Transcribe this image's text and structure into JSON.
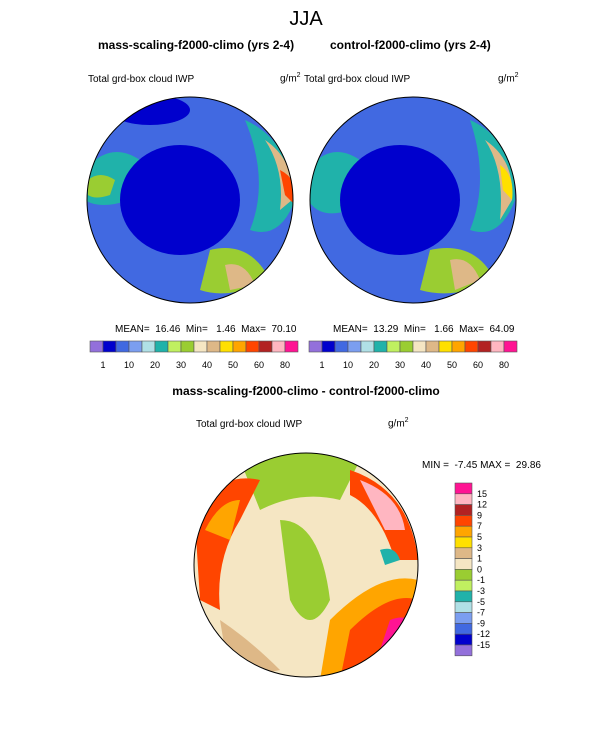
{
  "title": "JJA",
  "panels": [
    {
      "title": "mass-scaling-f2000-climo (yrs 2-4)",
      "variable": "Total grd-box cloud IWP",
      "units": "g/m",
      "units_sup": "2",
      "stats": "MEAN=  16.46  Min=   1.46  Max=  70.10"
    },
    {
      "title": "control-f2000-climo (yrs 2-4)",
      "variable": "Total grd-box cloud IWP",
      "units": "g/m",
      "units_sup": "2",
      "stats": "MEAN=  13.29  Min=   1.66  Max=  64.09"
    }
  ],
  "difference": {
    "title": "mass-scaling-f2000-climo - control-f2000-climo",
    "variable": "Total grd-box cloud IWP",
    "units": "g/m",
    "units_sup": "2",
    "stats": "MIN =  -7.45 MAX =  29.86"
  },
  "colorbar_abs": {
    "labels": [
      "1",
      "10",
      "20",
      "30",
      "40",
      "50",
      "60",
      "80"
    ],
    "colors": [
      "#9370db",
      "#0000cd",
      "#4169e1",
      "#7b9ef0",
      "#b0e0e6",
      "#20b2aa",
      "#c0f060",
      "#9acd32",
      "#f5e6c3",
      "#deb887",
      "#ffe000",
      "#ffa500",
      "#ff4500",
      "#b22222",
      "#ffb6c1",
      "#ff1493"
    ]
  },
  "colorbar_diff": {
    "labels": [
      "15",
      "12",
      "9",
      "7",
      "5",
      "3",
      "1",
      "0",
      "-1",
      "-3",
      "-5",
      "-7",
      "-9",
      "-12",
      "-15"
    ],
    "colors": [
      "#ff1493",
      "#ffb6c1",
      "#b22222",
      "#ff4500",
      "#ffa500",
      "#ffe000",
      "#deb887",
      "#f5e6c3",
      "#9acd32",
      "#c0f060",
      "#20b2aa",
      "#b0e0e6",
      "#7b9ef0",
      "#4169e1",
      "#0000cd",
      "#9370db"
    ]
  }
}
